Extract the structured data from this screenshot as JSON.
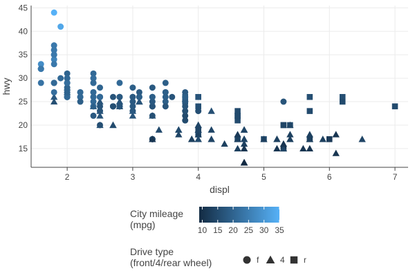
{
  "chart_data": {
    "type": "scatter",
    "title": "",
    "xlabel": "displ",
    "ylabel": "hwy",
    "xlim": [
      1.45,
      7.2
    ],
    "ylim": [
      11,
      45.5
    ],
    "x_ticks": [
      2,
      3,
      4,
      5,
      6,
      7
    ],
    "y_ticks": [
      15,
      20,
      25,
      30,
      35,
      40,
      45
    ],
    "grid": true,
    "color_legend": {
      "title": [
        "City mileage",
        "(mpg)"
      ],
      "ticks": [
        10,
        15,
        20,
        25,
        30,
        35
      ],
      "min": 9,
      "max": 35,
      "low_color": "#132b43",
      "high_color": "#56b1f7"
    },
    "shape_legend": {
      "title": [
        "Drive type",
        "(front/4/rear wheel)"
      ],
      "entries": [
        {
          "label": "f",
          "shape": "circle"
        },
        {
          "label": "4",
          "shape": "triangle"
        },
        {
          "label": "r",
          "shape": "square"
        }
      ]
    },
    "points": [
      [
        1.8,
        29,
        18,
        "f"
      ],
      [
        1.8,
        29,
        21,
        "f"
      ],
      [
        2.0,
        31,
        20,
        "f"
      ],
      [
        2.0,
        30,
        21,
        "f"
      ],
      [
        2.8,
        26,
        16,
        "f"
      ],
      [
        2.8,
        26,
        18,
        "f"
      ],
      [
        3.1,
        27,
        18,
        "f"
      ],
      [
        1.8,
        26,
        18,
        "4"
      ],
      [
        1.8,
        25,
        16,
        "4"
      ],
      [
        2.0,
        28,
        20,
        "4"
      ],
      [
        2.0,
        27,
        19,
        "4"
      ],
      [
        2.8,
        25,
        15,
        "4"
      ],
      [
        2.8,
        25,
        17,
        "4"
      ],
      [
        3.1,
        25,
        17,
        "4"
      ],
      [
        3.1,
        25,
        15,
        "4"
      ],
      [
        2.8,
        24,
        15,
        "4"
      ],
      [
        3.1,
        25,
        17,
        "4"
      ],
      [
        4.2,
        23,
        16,
        "4"
      ],
      [
        5.3,
        20,
        14,
        "r"
      ],
      [
        5.3,
        15,
        11,
        "r"
      ],
      [
        5.3,
        20,
        14,
        "r"
      ],
      [
        5.7,
        17,
        13,
        "r"
      ],
      [
        6.0,
        17,
        12,
        "r"
      ],
      [
        5.7,
        26,
        16,
        "r"
      ],
      [
        5.7,
        23,
        15,
        "r"
      ],
      [
        6.2,
        26,
        16,
        "r"
      ],
      [
        6.2,
        25,
        15,
        "r"
      ],
      [
        7.0,
        24,
        15,
        "r"
      ],
      [
        5.3,
        15,
        14,
        "4"
      ],
      [
        5.3,
        16,
        11,
        "4"
      ],
      [
        5.7,
        15,
        11,
        "4"
      ],
      [
        6.5,
        17,
        14,
        "4"
      ],
      [
        2.4,
        24,
        19,
        "f"
      ],
      [
        2.4,
        24,
        22,
        "f"
      ],
      [
        3.1,
        26,
        18,
        "f"
      ],
      [
        3.5,
        29,
        19,
        "f"
      ],
      [
        3.6,
        26,
        17,
        "f"
      ],
      [
        2.4,
        22,
        18,
        "f"
      ],
      [
        3.0,
        23,
        17,
        "f"
      ],
      [
        3.3,
        24,
        16,
        "f"
      ],
      [
        3.3,
        24,
        16,
        "f"
      ],
      [
        3.3,
        22,
        17,
        "f"
      ],
      [
        3.3,
        24,
        17,
        "f"
      ],
      [
        3.3,
        17,
        11,
        "f"
      ],
      [
        3.8,
        22,
        15,
        "f"
      ],
      [
        3.8,
        21,
        15,
        "f"
      ],
      [
        3.8,
        23,
        16,
        "f"
      ],
      [
        4.0,
        23,
        16,
        "f"
      ],
      [
        3.7,
        19,
        15,
        "4"
      ],
      [
        3.7,
        18,
        14,
        "4"
      ],
      [
        3.9,
        17,
        13,
        "4"
      ],
      [
        3.9,
        17,
        14,
        "4"
      ],
      [
        4.7,
        19,
        14,
        "4"
      ],
      [
        4.7,
        19,
        14,
        "4"
      ],
      [
        4.7,
        12,
        9,
        "4"
      ],
      [
        5.2,
        17,
        13,
        "4"
      ],
      [
        5.2,
        15,
        11,
        "4"
      ],
      [
        3.9,
        17,
        13,
        "4"
      ],
      [
        4.7,
        17,
        13,
        "4"
      ],
      [
        4.7,
        16,
        13,
        "4"
      ],
      [
        4.7,
        12,
        9,
        "4"
      ],
      [
        4.7,
        15,
        13,
        "4"
      ],
      [
        5.2,
        17,
        13,
        "4"
      ],
      [
        5.7,
        17,
        13,
        "4"
      ],
      [
        5.9,
        17,
        13,
        "4"
      ],
      [
        4.7,
        12,
        9,
        "4"
      ],
      [
        4.7,
        17,
        13,
        "4"
      ],
      [
        4.7,
        17,
        13,
        "4"
      ],
      [
        4.7,
        12,
        9,
        "4"
      ],
      [
        5.7,
        17,
        13,
        "4"
      ],
      [
        6.1,
        14,
        11,
        "4"
      ],
      [
        4.0,
        19,
        14,
        "r"
      ],
      [
        4.0,
        18,
        15,
        "r"
      ],
      [
        4.6,
        17,
        15,
        "r"
      ],
      [
        5.0,
        17,
        15,
        "r"
      ],
      [
        4.2,
        17,
        14,
        "4"
      ],
      [
        4.2,
        19,
        14,
        "4"
      ],
      [
        4.6,
        17,
        13,
        "4"
      ],
      [
        4.6,
        17,
        13,
        "4"
      ],
      [
        4.6,
        17,
        13,
        "4"
      ],
      [
        5.4,
        17,
        13,
        "4"
      ],
      [
        5.4,
        17,
        13,
        "4"
      ],
      [
        3.8,
        26,
        18,
        "r"
      ],
      [
        3.8,
        25,
        18,
        "r"
      ],
      [
        4.0,
        26,
        17,
        "r"
      ],
      [
        4.0,
        24,
        16,
        "r"
      ],
      [
        4.6,
        21,
        15,
        "r"
      ],
      [
        4.6,
        22,
        15,
        "r"
      ],
      [
        4.6,
        23,
        15,
        "r"
      ],
      [
        4.6,
        22,
        15,
        "r"
      ],
      [
        5.4,
        20,
        15,
        "r"
      ],
      [
        1.6,
        33,
        28,
        "f"
      ],
      [
        1.6,
        32,
        24,
        "f"
      ],
      [
        1.6,
        32,
        25,
        "f"
      ],
      [
        1.6,
        29,
        23,
        "f"
      ],
      [
        1.6,
        32,
        24,
        "f"
      ],
      [
        1.8,
        34,
        26,
        "f"
      ],
      [
        1.8,
        36,
        25,
        "f"
      ],
      [
        1.8,
        36,
        24,
        "f"
      ],
      [
        2.0,
        29,
        21,
        "f"
      ],
      [
        2.4,
        26,
        18,
        "f"
      ],
      [
        2.4,
        27,
        18,
        "f"
      ],
      [
        2.4,
        30,
        21,
        "f"
      ],
      [
        2.4,
        31,
        21,
        "f"
      ],
      [
        2.5,
        26,
        18,
        "f"
      ],
      [
        2.5,
        26,
        18,
        "f"
      ],
      [
        3.3,
        26,
        19,
        "f"
      ],
      [
        2.0,
        26,
        19,
        "f"
      ],
      [
        2.0,
        29,
        19,
        "f"
      ],
      [
        2.0,
        28,
        20,
        "f"
      ],
      [
        2.0,
        27,
        20,
        "f"
      ],
      [
        2.7,
        24,
        17,
        "f"
      ],
      [
        2.7,
        24,
        16,
        "f"
      ],
      [
        2.7,
        24,
        17,
        "f"
      ],
      [
        3.0,
        22,
        17,
        "4"
      ],
      [
        3.7,
        19,
        15,
        "4"
      ],
      [
        4.0,
        20,
        15,
        "4"
      ],
      [
        4.7,
        17,
        14,
        "4"
      ],
      [
        4.7,
        12,
        9,
        "4"
      ],
      [
        4.7,
        19,
        14,
        "4"
      ],
      [
        5.7,
        18,
        13,
        "4"
      ],
      [
        6.1,
        18,
        11,
        "4"
      ],
      [
        4.0,
        17,
        13,
        "4"
      ],
      [
        4.2,
        17,
        14,
        "4"
      ],
      [
        4.4,
        16,
        13,
        "4"
      ],
      [
        4.6,
        18,
        12,
        "4"
      ],
      [
        5.4,
        18,
        13,
        "4"
      ],
      [
        5.4,
        20,
        14,
        "4"
      ],
      [
        4.0,
        19,
        15,
        "4"
      ],
      [
        4.0,
        20,
        14,
        "4"
      ],
      [
        4.0,
        18,
        13,
        "4"
      ],
      [
        4.0,
        17,
        15,
        "4"
      ],
      [
        4.6,
        15,
        13,
        "4"
      ],
      [
        5.0,
        17,
        13,
        "4"
      ],
      [
        3.3,
        17,
        14,
        "f"
      ],
      [
        3.3,
        17,
        14,
        "f"
      ],
      [
        4.0,
        19,
        14,
        "4"
      ],
      [
        5.6,
        15,
        11,
        "4"
      ],
      [
        3.1,
        26,
        19,
        "f"
      ],
      [
        3.8,
        25,
        16,
        "f"
      ],
      [
        3.8,
        27,
        18,
        "f"
      ],
      [
        3.8,
        25,
        18,
        "f"
      ],
      [
        5.3,
        25,
        17,
        "f"
      ],
      [
        2.5,
        23,
        17,
        "f"
      ],
      [
        2.5,
        20,
        16,
        "f"
      ],
      [
        2.5,
        20,
        16,
        "4"
      ],
      [
        2.5,
        22,
        17,
        "4"
      ],
      [
        2.5,
        25,
        17,
        "4"
      ],
      [
        2.5,
        23,
        17,
        "4"
      ],
      [
        2.7,
        20,
        16,
        "4"
      ],
      [
        3.0,
        23,
        18,
        "4"
      ],
      [
        3.3,
        22,
        16,
        "4"
      ],
      [
        2.2,
        27,
        21,
        "f"
      ],
      [
        2.2,
        26,
        21,
        "f"
      ],
      [
        2.4,
        29,
        21,
        "f"
      ],
      [
        2.4,
        30,
        22,
        "f"
      ],
      [
        3.0,
        26,
        18,
        "f"
      ],
      [
        3.0,
        26,
        18,
        "f"
      ],
      [
        3.5,
        26,
        19,
        "f"
      ],
      [
        2.2,
        26,
        21,
        "f"
      ],
      [
        2.2,
        27,
        21,
        "f"
      ],
      [
        2.4,
        25,
        21,
        "f"
      ],
      [
        2.4,
        26,
        21,
        "f"
      ],
      [
        3.0,
        25,
        18,
        "f"
      ],
      [
        3.0,
        24,
        18,
        "f"
      ],
      [
        3.5,
        25,
        19,
        "f"
      ],
      [
        1.8,
        35,
        28,
        "f"
      ],
      [
        1.8,
        37,
        24,
        "f"
      ],
      [
        1.8,
        35,
        24,
        "f"
      ],
      [
        1.8,
        44,
        35,
        "f"
      ],
      [
        1.8,
        33,
        24,
        "f"
      ],
      [
        1.9,
        41,
        33,
        "f"
      ],
      [
        2.4,
        29,
        21,
        "f"
      ],
      [
        2.5,
        26,
        18,
        "f"
      ],
      [
        2.7,
        26,
        17,
        "f"
      ],
      [
        3.3,
        28,
        18,
        "f"
      ],
      [
        3.3,
        25,
        18,
        "f"
      ],
      [
        2.4,
        24,
        18,
        "4"
      ],
      [
        2.4,
        24,
        19,
        "4"
      ],
      [
        2.0,
        29,
        21,
        "f"
      ],
      [
        2.0,
        29,
        22,
        "f"
      ],
      [
        2.0,
        26,
        21,
        "f"
      ],
      [
        2.0,
        26,
        21,
        "f"
      ],
      [
        2.8,
        24,
        16,
        "f"
      ],
      [
        2.8,
        24,
        17,
        "f"
      ],
      [
        2.7,
        24,
        16,
        "f"
      ],
      [
        2.8,
        24,
        17,
        "f"
      ],
      [
        1.8,
        27,
        22,
        "f"
      ],
      [
        1.8,
        29,
        21,
        "f"
      ],
      [
        2.0,
        26,
        21,
        "f"
      ],
      [
        2.5,
        24,
        17,
        "f"
      ],
      [
        3.3,
        17,
        11,
        "4"
      ],
      [
        3.5,
        27,
        19,
        "f"
      ],
      [
        3.5,
        24,
        17,
        "f"
      ],
      [
        2.7,
        20,
        15,
        "4"
      ],
      [
        3.4,
        19,
        15,
        "4"
      ],
      [
        4.7,
        15,
        11,
        "4"
      ],
      [
        5.7,
        17,
        13,
        "4"
      ],
      [
        2.2,
        25,
        19,
        "f"
      ],
      [
        2.4,
        27,
        21,
        "f"
      ],
      [
        3.0,
        28,
        19,
        "f"
      ],
      [
        3.5,
        27,
        19,
        "f"
      ],
      [
        4.0,
        26,
        17,
        "r"
      ],
      [
        1.9,
        30,
        21,
        "f"
      ],
      [
        2.0,
        30,
        21,
        "f"
      ],
      [
        2.5,
        28,
        20,
        "f"
      ],
      [
        2.8,
        29,
        21,
        "f"
      ],
      [
        2.0,
        27,
        20,
        "f"
      ],
      [
        2.5,
        26,
        21,
        "f"
      ],
      [
        3.3,
        26,
        19,
        "f"
      ],
      [
        3.8,
        26,
        19,
        "f"
      ],
      [
        3.8,
        24,
        17,
        "f"
      ]
    ]
  }
}
